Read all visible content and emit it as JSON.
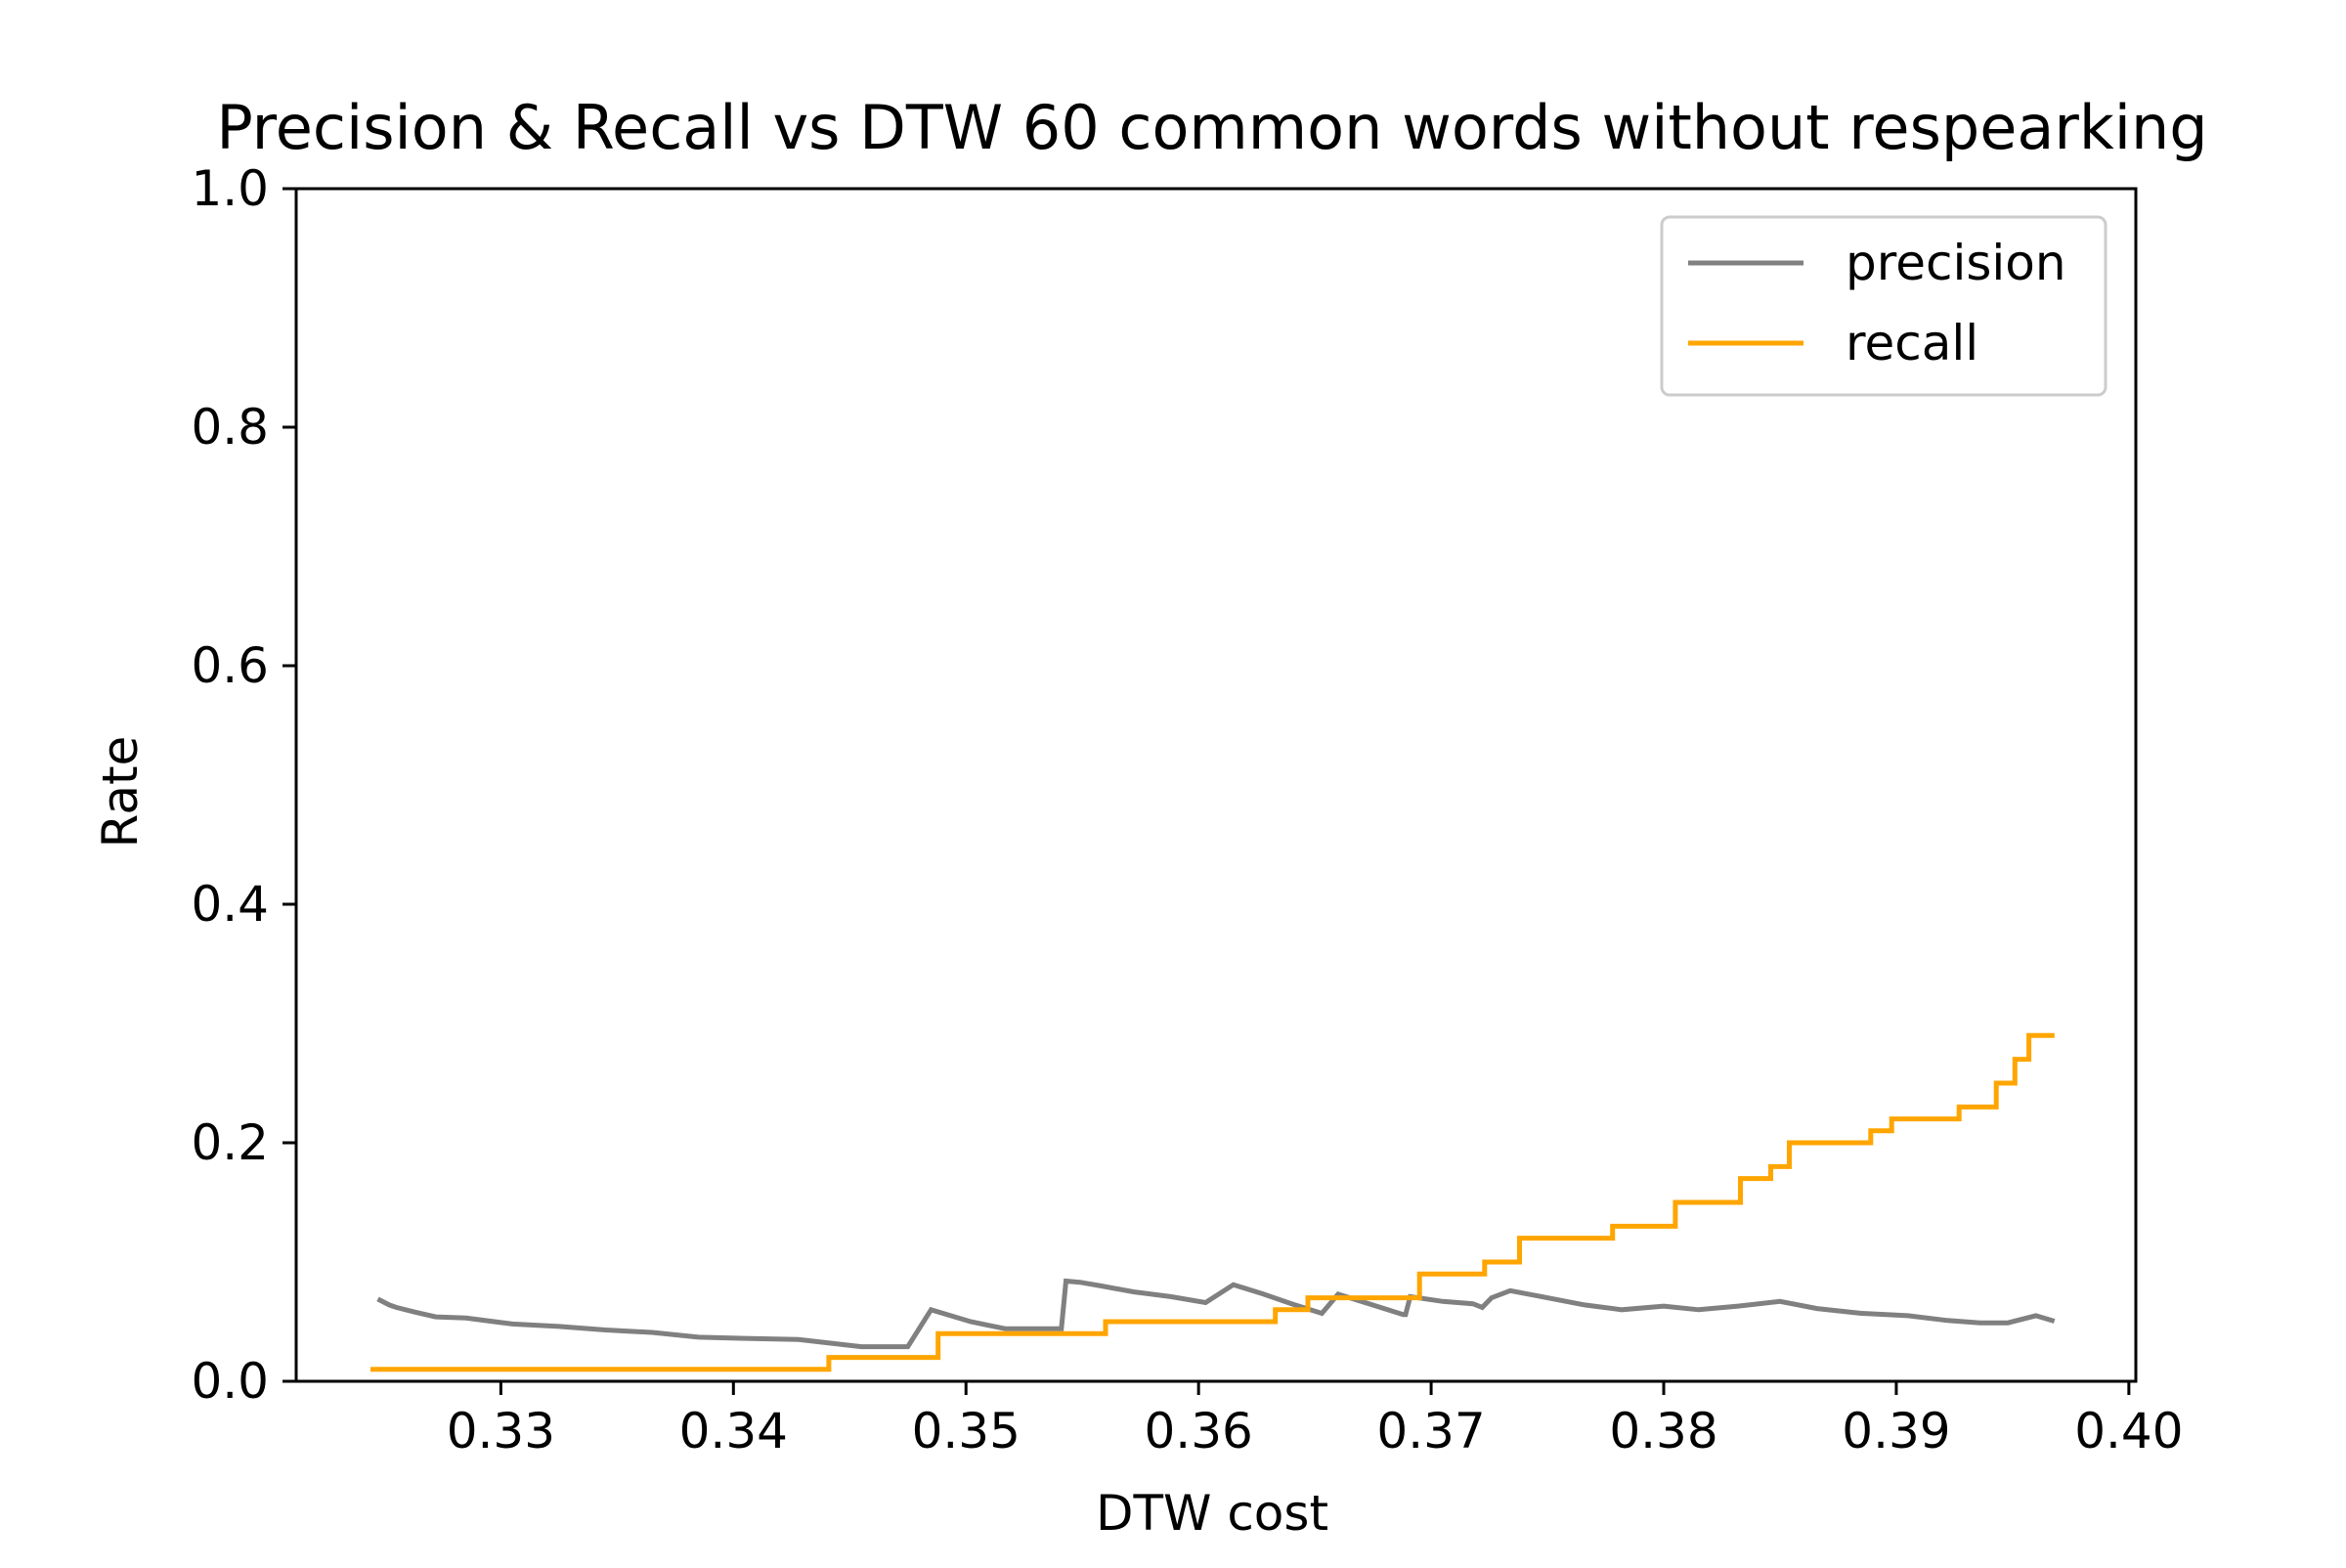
{
  "chart_data": {
    "type": "line",
    "title": "Precision & Recall vs DTW 60 common words without respearking",
    "xlabel": "DTW cost",
    "ylabel": "Rate",
    "xlim": [
      0.3212,
      0.4003
    ],
    "ylim": [
      0.0,
      1.0
    ],
    "x_ticks": [
      0.33,
      0.34,
      0.35,
      0.36,
      0.37,
      0.38,
      0.39,
      0.4
    ],
    "x_tick_labels": [
      "0.33",
      "0.34",
      "0.35",
      "0.36",
      "0.37",
      "0.38",
      "0.39",
      "0.40"
    ],
    "y_ticks": [
      0.0,
      0.2,
      0.4,
      0.6,
      0.8,
      1.0
    ],
    "y_tick_labels": [
      "0.0",
      "0.2",
      "0.4",
      "0.6",
      "0.8",
      "1.0"
    ],
    "grid": false,
    "legend_position": "upper right",
    "series": [
      {
        "name": "precision",
        "color": "#808080",
        "step": false,
        "x": [
          0.3248,
          0.3252,
          0.3255,
          0.3263,
          0.3272,
          0.3285,
          0.3305,
          0.3325,
          0.3345,
          0.3365,
          0.3385,
          0.3405,
          0.3428,
          0.3455,
          0.3475,
          0.3485,
          0.3502,
          0.3517,
          0.3535,
          0.3541,
          0.3543,
          0.3549,
          0.3558,
          0.3572,
          0.3588,
          0.3603,
          0.3615,
          0.3628,
          0.364,
          0.3653,
          0.366,
          0.3688,
          0.3689,
          0.3691,
          0.3705,
          0.3718,
          0.3722,
          0.3726,
          0.3734,
          0.375,
          0.3766,
          0.3782,
          0.38,
          0.3815,
          0.3832,
          0.385,
          0.3866,
          0.3885,
          0.3905,
          0.3922,
          0.3936,
          0.3948,
          0.396,
          0.3967
        ],
        "y": [
          0.068,
          0.064,
          0.062,
          0.058,
          0.054,
          0.053,
          0.048,
          0.046,
          0.043,
          0.041,
          0.037,
          0.036,
          0.035,
          0.029,
          0.029,
          0.06,
          0.05,
          0.044,
          0.044,
          0.044,
          0.084,
          0.083,
          0.08,
          0.075,
          0.071,
          0.066,
          0.081,
          0.073,
          0.065,
          0.057,
          0.073,
          0.056,
          0.056,
          0.071,
          0.067,
          0.065,
          0.062,
          0.07,
          0.076,
          0.07,
          0.064,
          0.06,
          0.063,
          0.06,
          0.063,
          0.067,
          0.061,
          0.057,
          0.055,
          0.051,
          0.049,
          0.049,
          0.055,
          0.051
        ]
      },
      {
        "name": "recall",
        "color": "#FFA500",
        "step": true,
        "x": [
          0.3245,
          0.3441,
          0.3488,
          0.356,
          0.3633,
          0.3647,
          0.3695,
          0.3723,
          0.3738,
          0.3778,
          0.3805,
          0.3833,
          0.3846,
          0.3854,
          0.3889,
          0.3898,
          0.3927,
          0.3943,
          0.3951,
          0.3957,
          0.3967
        ],
        "y": [
          0.01,
          0.02,
          0.04,
          0.05,
          0.06,
          0.07,
          0.09,
          0.1,
          0.12,
          0.13,
          0.15,
          0.17,
          0.18,
          0.2,
          0.21,
          0.22,
          0.23,
          0.25,
          0.27,
          0.29,
          0.29
        ]
      }
    ]
  }
}
